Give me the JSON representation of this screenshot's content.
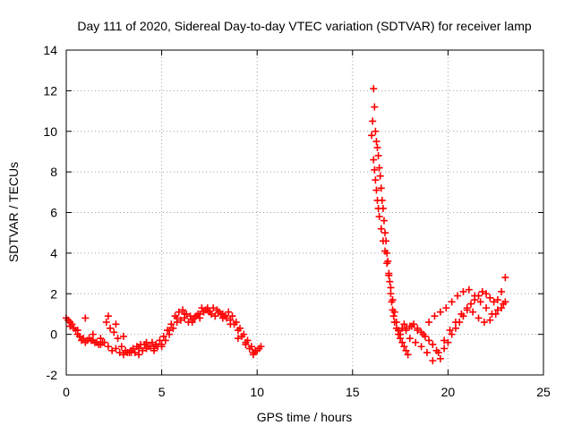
{
  "chart_data": {
    "type": "scatter",
    "title": "Day 111 of 2020, Sidereal Day-to-day VTEC variation (SDTVAR) for receiver lamp",
    "xlabel": "GPS time / hours",
    "ylabel": "SDTVAR / TECUs",
    "xlim": [
      0,
      25
    ],
    "ylim": [
      -2,
      14
    ],
    "xticks": [
      0,
      5,
      10,
      15,
      20,
      25
    ],
    "yticks": [
      -2,
      0,
      2,
      4,
      6,
      8,
      10,
      12,
      14
    ],
    "grid": true,
    "legend": "none",
    "marker": "plus",
    "series": [
      {
        "name": "SDTVAR",
        "color": "#ff0000",
        "x": [
          0.0,
          0.2,
          0.4,
          0.6,
          0.8,
          1.0,
          1.2,
          1.4,
          1.6,
          1.8,
          2.0,
          2.2,
          2.4,
          2.6,
          2.8,
          3.0,
          3.2,
          3.4,
          3.6,
          3.8,
          4.0,
          4.2,
          4.4,
          4.6,
          4.8,
          5.0,
          5.2,
          5.4,
          5.6,
          5.8,
          6.0,
          6.2,
          6.4,
          6.6,
          6.8,
          7.0,
          7.2,
          7.4,
          7.6,
          7.8,
          8.0,
          8.2,
          8.4,
          8.6,
          8.8,
          9.0,
          9.2,
          9.4,
          9.6,
          9.8,
          10.0,
          10.2,
          0.1,
          0.3,
          0.5,
          0.7,
          0.9,
          1.1,
          1.3,
          1.5,
          1.7,
          1.9,
          2.1,
          2.3,
          2.5,
          2.7,
          2.9,
          3.1,
          3.3,
          3.5,
          3.7,
          3.9,
          4.1,
          4.3,
          4.5,
          4.7,
          4.9,
          5.1,
          5.3,
          5.5,
          5.7,
          5.9,
          6.1,
          6.3,
          6.5,
          6.7,
          6.9,
          7.1,
          7.3,
          7.5,
          7.7,
          7.9,
          8.1,
          8.3,
          8.5,
          8.7,
          8.9,
          9.1,
          9.3,
          9.5,
          9.7,
          9.9,
          0.2,
          0.6,
          1.0,
          1.4,
          1.8,
          2.2,
          2.6,
          3.0,
          3.4,
          3.8,
          4.2,
          4.6,
          5.0,
          5.4,
          5.8,
          6.2,
          6.6,
          7.0,
          7.4,
          7.8,
          8.2,
          8.6,
          9.0,
          9.4,
          9.8,
          10.1,
          16.0,
          16.05,
          16.1,
          16.15,
          16.2,
          16.25,
          16.3,
          16.35,
          16.4,
          16.45,
          16.5,
          16.55,
          16.6,
          16.65,
          16.7,
          16.75,
          16.8,
          16.85,
          16.9,
          16.95,
          17.0,
          17.05,
          17.1,
          17.15,
          17.2,
          17.3,
          17.4,
          17.5,
          17.6,
          17.7,
          17.8,
          17.9,
          16.1,
          16.15,
          16.2,
          16.25,
          16.3,
          16.35,
          16.4,
          16.5,
          16.6,
          16.7,
          16.8,
          16.9,
          17.0,
          17.1,
          17.2,
          17.3,
          17.4,
          17.5,
          17.6,
          17.7,
          17.5,
          17.8,
          18.0,
          18.2,
          18.4,
          18.6,
          18.8,
          19.0,
          19.2,
          19.4,
          19.6,
          19.8,
          20.0,
          20.2,
          20.4,
          20.6,
          20.8,
          21.0,
          21.2,
          21.4,
          21.6,
          21.8,
          22.0,
          22.2,
          22.4,
          22.6,
          22.8,
          23.0,
          17.8,
          18.1,
          18.4,
          18.7,
          19.0,
          19.3,
          19.6,
          19.9,
          20.2,
          20.5,
          20.8,
          21.1,
          21.4,
          21.7,
          22.0,
          22.3,
          22.6,
          22.9,
          18.0,
          18.3,
          18.6,
          18.9,
          19.2,
          19.5,
          19.8,
          20.1,
          20.4,
          20.7,
          21.0,
          21.3,
          21.6,
          21.9,
          22.2,
          22.5,
          22.8,
          23.0
        ],
        "y": [
          0.8,
          0.6,
          0.3,
          0.0,
          -0.3,
          -0.4,
          -0.2,
          -0.3,
          -0.4,
          -0.5,
          -0.4,
          -0.6,
          -0.8,
          -0.7,
          -0.9,
          -1.0,
          -0.9,
          -0.8,
          -0.9,
          -1.0,
          -0.8,
          -0.7,
          -0.6,
          -0.7,
          -0.6,
          -0.5,
          -0.3,
          0.0,
          0.3,
          0.6,
          0.7,
          0.8,
          0.6,
          0.7,
          0.9,
          1.0,
          1.1,
          1.2,
          1.0,
          0.9,
          1.1,
          1.0,
          0.8,
          0.7,
          0.5,
          0.2,
          -0.1,
          -0.4,
          -0.7,
          -0.9,
          -0.8,
          -0.6,
          0.7,
          0.5,
          0.2,
          -0.1,
          -0.2,
          -0.3,
          -0.3,
          -0.4,
          -0.5,
          -0.4,
          0.6,
          0.3,
          0.1,
          -0.2,
          -0.6,
          -0.8,
          -0.9,
          -0.7,
          -0.6,
          -0.5,
          -0.5,
          -0.6,
          -0.4,
          -0.5,
          -0.3,
          -0.1,
          0.2,
          0.5,
          0.9,
          1.1,
          1.2,
          1.0,
          0.9,
          0.8,
          1.0,
          1.3,
          1.2,
          1.1,
          1.3,
          1.2,
          1.0,
          0.9,
          1.1,
          0.9,
          0.6,
          0.3,
          0.0,
          -0.3,
          -0.6,
          -0.8,
          0.4,
          0.2,
          0.8,
          0.0,
          -0.2,
          0.9,
          0.5,
          -0.1,
          -0.9,
          -0.7,
          -0.4,
          -0.8,
          -0.6,
          0.2,
          0.8,
          1.0,
          0.6,
          0.8,
          1.3,
          0.9,
          0.8,
          0.5,
          -0.2,
          -0.5,
          -1.0,
          -0.7,
          9.8,
          10.5,
          12.1,
          11.2,
          10.0,
          9.5,
          9.2,
          8.8,
          8.2,
          7.8,
          7.2,
          6.6,
          6.2,
          5.6,
          5.0,
          4.6,
          4.0,
          3.6,
          3.0,
          2.6,
          2.0,
          1.6,
          1.2,
          0.9,
          0.6,
          0.3,
          0.0,
          -0.2,
          -0.4,
          -0.6,
          -0.8,
          -1.0,
          8.6,
          8.1,
          7.6,
          7.1,
          6.6,
          6.2,
          5.8,
          5.2,
          4.6,
          4.1,
          3.5,
          2.9,
          2.3,
          1.7,
          1.1,
          0.6,
          0.2,
          0.0,
          0.3,
          0.5,
          0.0,
          0.2,
          0.4,
          0.5,
          0.3,
          0.1,
          -0.1,
          -0.3,
          -0.5,
          -0.8,
          -1.2,
          -0.7,
          -0.4,
          0.0,
          0.3,
          0.6,
          0.9,
          1.2,
          1.5,
          1.7,
          1.9,
          2.1,
          2.0,
          1.8,
          1.6,
          1.7,
          2.1,
          2.8,
          0.3,
          0.4,
          0.2,
          0.0,
          0.6,
          0.9,
          1.1,
          1.3,
          1.6,
          1.9,
          2.1,
          2.2,
          1.9,
          1.6,
          1.3,
          1.0,
          1.2,
          1.5,
          -0.2,
          -0.4,
          -0.6,
          -0.9,
          -1.3,
          -0.9,
          -0.3,
          0.2,
          0.6,
          1.0,
          1.3,
          1.1,
          0.8,
          0.6,
          0.7,
          1.0,
          1.3,
          1.6
        ]
      }
    ]
  }
}
